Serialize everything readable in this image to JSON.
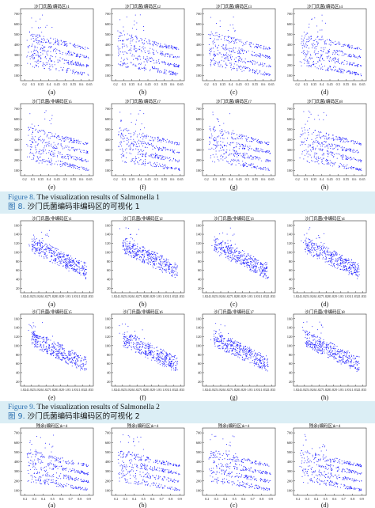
{
  "figure8": {
    "caption_en_label": "Figure 8.",
    "caption_en_text": "The visualization results of Salmonella 1",
    "caption_zh_label": "图 8.",
    "caption_zh_text": "沙门氏菌编码非编码区的可视化 1",
    "yticks": [
      "700",
      "600",
      "500",
      "400",
      "300",
      "200",
      "100"
    ],
    "xticks": [
      "0.2",
      "0.3",
      "0.35",
      "0.4",
      "0.45",
      "0.5",
      "0.55",
      "0.6",
      "0.65"
    ],
    "panels": [
      {
        "title": "沙门氏菌(编码区)1",
        "letter": "(a)"
      },
      {
        "title": "沙门氏菌(编码区)2",
        "letter": "(b)"
      },
      {
        "title": "沙门氏菌(编码区)3",
        "letter": "(c)"
      },
      {
        "title": "沙门氏菌(编码区)4",
        "letter": "(d)"
      },
      {
        "title": "沙门氏菌(非编码区)5",
        "letter": "(e)"
      },
      {
        "title": "沙门氏菌(编码区)7",
        "letter": "(f)"
      },
      {
        "title": "沙门氏菌(编码区)7",
        "letter": "(g)"
      },
      {
        "title": "沙门氏菌(编码区)8",
        "letter": "(h)"
      }
    ]
  },
  "figure9": {
    "caption_en_label": "Figure 9.",
    "caption_en_text": "The visualization results of Salmonella 2",
    "caption_zh_label": "图 9.",
    "caption_zh_text": "沙门氏菌编码非编码区的可视化 2",
    "yticks": [
      "160",
      "140",
      "120",
      "100",
      "80",
      "60",
      "40",
      "20"
    ],
    "xticks": [
      "1.824",
      "1.825",
      "1.826",
      "1.827",
      "1.828",
      "1.829",
      "1.83",
      "1.831",
      "1.832",
      "1.833"
    ],
    "panels": [
      {
        "title": "沙门氏菌(非编码区)1",
        "letter": "(a)"
      },
      {
        "title": "沙门氏菌(非编码区)2",
        "letter": "(b)"
      },
      {
        "title": "沙门氏菌(非编码区)3",
        "letter": "(c)"
      },
      {
        "title": "沙门氏菌(非编码区)4",
        "letter": "(d)"
      },
      {
        "title": "沙门氏菌(非编码区)5",
        "letter": "(e)"
      },
      {
        "title": "沙门氏菌(非编码区)6",
        "letter": "(f)"
      },
      {
        "title": "沙门氏菌(非编码区)7",
        "letter": "(g)"
      },
      {
        "title": "沙门氏菌(非编码区)8",
        "letter": "(h)"
      }
    ]
  },
  "figure10": {
    "yticks": [
      "700",
      "600",
      "500",
      "400",
      "300",
      "200",
      "100"
    ],
    "xticks": [
      "0.2",
      "0.3",
      "0.4",
      "0.5",
      "0.6",
      "0.7",
      "0.8",
      "0.9"
    ],
    "panels": [
      {
        "title": "残余(编码区)k=4",
        "letter": "(a)"
      },
      {
        "title": "残余(编码区)k=4",
        "letter": "(b)"
      },
      {
        "title": "残余(编码区)k=4",
        "letter": "(c)"
      },
      {
        "title": "残余(编码区)k=4",
        "letter": "(d)"
      }
    ]
  },
  "colors": {
    "points": "#1a1aff",
    "caption_bg": "#dbeef5",
    "caption_label": "#2a6fb0"
  }
}
